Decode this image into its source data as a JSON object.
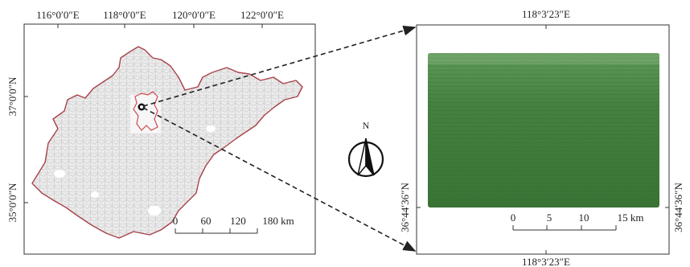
{
  "left_map": {
    "top_ticks": [
      "116°0′0″E",
      "118°0′0″E",
      "120°0′0″E",
      "122°0′0″E"
    ],
    "left_ticks": [
      "37°0′0″N",
      "35°0′0″N"
    ],
    "scale_labels": [
      "0",
      "60",
      "120",
      "180 km"
    ]
  },
  "right_map": {
    "top_tick": "118°3′23″E",
    "bottom_tick": "118°3′23″E",
    "left_tick": "36°44′36″N",
    "right_tick": "36°44′36″N",
    "scale_labels": [
      "0",
      "5",
      "10",
      "15 km"
    ]
  },
  "north_arrow": {
    "label": "N"
  },
  "colors": {
    "province_outline": "#a8424a",
    "county_lines": "#c9c9c9",
    "study_area": "#d24a4a",
    "vegetation": "#3f7a3a"
  }
}
